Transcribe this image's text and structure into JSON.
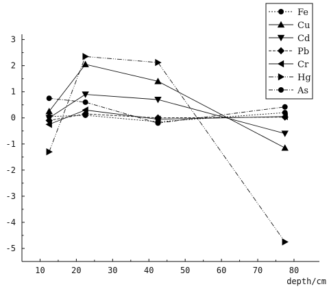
{
  "chart_data": {
    "type": "line",
    "title": "",
    "xlabel": "depth/cm",
    "ylabel": "",
    "xlim": [
      5,
      87
    ],
    "ylim": [
      -5.5,
      3.2
    ],
    "x_ticks": [
      10,
      20,
      30,
      40,
      50,
      60,
      70,
      80
    ],
    "y_ticks": [
      3,
      2,
      1,
      0,
      -1,
      -2,
      -3,
      -4,
      -5
    ],
    "legend_position": "top-right",
    "grid": false,
    "series": [
      {
        "name": "Fe",
        "marker": "circle",
        "dash": "2,2",
        "x": [
          12.5,
          22.5,
          42.5,
          77.5
        ],
        "y": [
          0.05,
          0.1,
          -0.15,
          0.2
        ]
      },
      {
        "name": "Cu",
        "marker": "triangle-up",
        "dash": "",
        "x": [
          12.5,
          22.5,
          42.5,
          77.5
        ],
        "y": [
          0.25,
          2.05,
          1.4,
          -1.15
        ]
      },
      {
        "name": "Cd",
        "marker": "triangle-down",
        "dash": "",
        "x": [
          12.5,
          22.5,
          42.5,
          77.5
        ],
        "y": [
          0.0,
          0.9,
          0.7,
          -0.6
        ]
      },
      {
        "name": "Pb",
        "marker": "diamond",
        "dash": "4,2",
        "x": [
          12.5,
          22.5,
          42.5,
          77.5
        ],
        "y": [
          -0.1,
          0.15,
          0.0,
          0.03
        ]
      },
      {
        "name": "Cr",
        "marker": "triangle-left",
        "dash": "",
        "x": [
          12.5,
          22.5,
          42.5,
          77.5
        ],
        "y": [
          -0.25,
          0.3,
          -0.05,
          0.05
        ]
      },
      {
        "name": "Hg",
        "marker": "triangle-right",
        "dash": "7,2,1,2,1,2",
        "x": [
          12.5,
          22.5,
          42.5,
          77.5
        ],
        "y": [
          -1.3,
          2.35,
          2.12,
          -4.75
        ]
      },
      {
        "name": "As",
        "marker": "circle",
        "dash": "6,2,1,2",
        "x": [
          12.5,
          22.5,
          42.5,
          77.5
        ],
        "y": [
          0.75,
          0.6,
          -0.2,
          0.42
        ]
      }
    ]
  }
}
